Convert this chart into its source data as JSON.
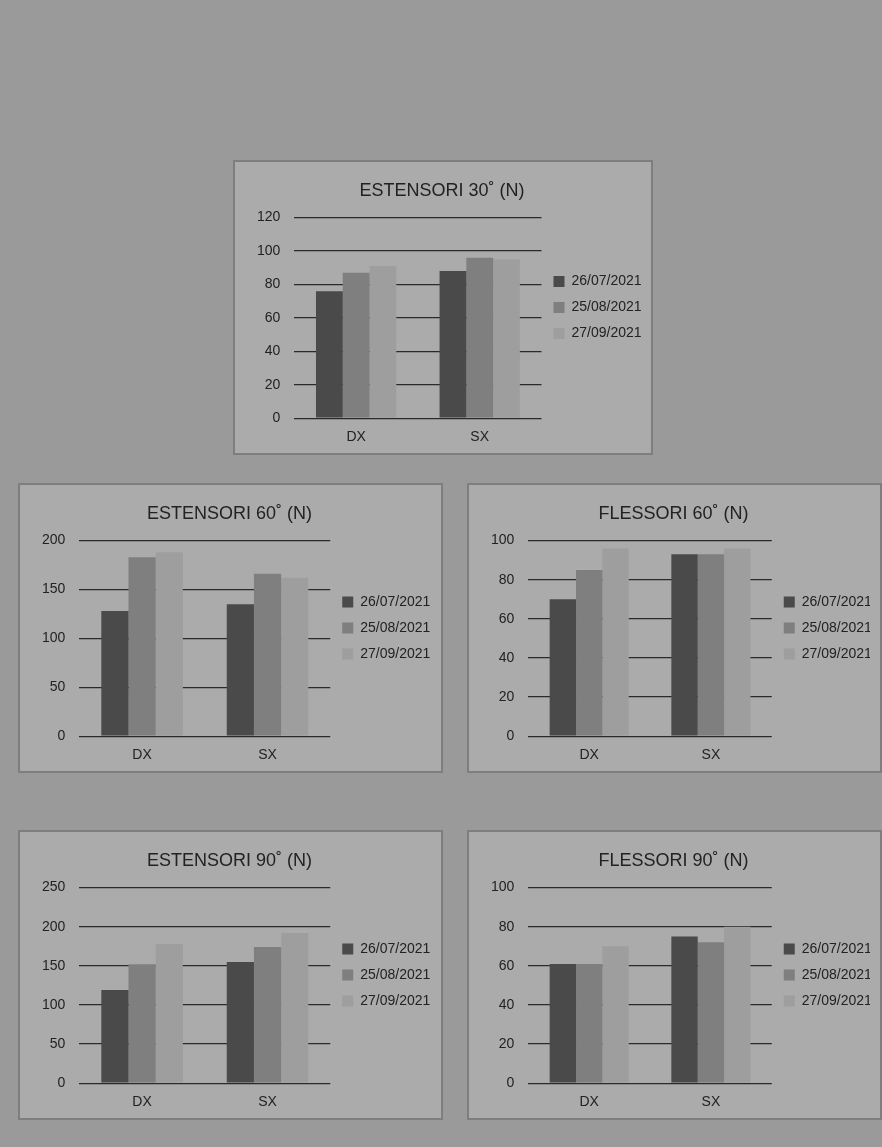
{
  "chart_data": [
    {
      "type": "bar",
      "title": "ESTENSORI 30˚ (N)",
      "categories": [
        "DX",
        "SX"
      ],
      "series": [
        {
          "name": "26/07/2021",
          "color": "#4a4a4a",
          "values": [
            76,
            88
          ]
        },
        {
          "name": "25/08/2021",
          "color": "#7f7f7f",
          "values": [
            87,
            96
          ]
        },
        {
          "name": "27/09/2021",
          "color": "#9e9e9e",
          "values": [
            91,
            95
          ]
        }
      ],
      "ylim": [
        0,
        120
      ],
      "yticks": [
        0,
        20,
        40,
        60,
        80,
        100,
        120
      ],
      "grid": "y",
      "legend": "right"
    },
    {
      "type": "bar",
      "title": "ESTENSORI 60˚ (N)",
      "categories": [
        "DX",
        "SX"
      ],
      "series": [
        {
          "name": "26/07/2021",
          "color": "#4a4a4a",
          "values": [
            128,
            135
          ]
        },
        {
          "name": "25/08/2021",
          "color": "#7f7f7f",
          "values": [
            183,
            166
          ]
        },
        {
          "name": "27/09/2021",
          "color": "#9e9e9e",
          "values": [
            188,
            162
          ]
        }
      ],
      "ylim": [
        0,
        200
      ],
      "yticks": [
        0,
        50,
        100,
        150,
        200
      ],
      "grid": "y",
      "legend": "right"
    },
    {
      "type": "bar",
      "title": "FLESSORI 60˚ (N)",
      "categories": [
        "DX",
        "SX"
      ],
      "series": [
        {
          "name": "26/07/2021",
          "color": "#4a4a4a",
          "values": [
            70,
            93
          ]
        },
        {
          "name": "25/08/2021",
          "color": "#7f7f7f",
          "values": [
            85,
            93
          ]
        },
        {
          "name": "27/09/2021",
          "color": "#9e9e9e",
          "values": [
            96,
            96
          ]
        }
      ],
      "ylim": [
        0,
        100
      ],
      "yticks": [
        0,
        20,
        40,
        60,
        80,
        100
      ],
      "grid": "y",
      "legend": "right"
    },
    {
      "type": "bar",
      "title": "ESTENSORI 90˚ (N)",
      "categories": [
        "DX",
        "SX"
      ],
      "series": [
        {
          "name": "26/07/2021",
          "color": "#4a4a4a",
          "values": [
            119,
            155
          ]
        },
        {
          "name": "25/08/2021",
          "color": "#7f7f7f",
          "values": [
            152,
            174
          ]
        },
        {
          "name": "27/09/2021",
          "color": "#9e9e9e",
          "values": [
            178,
            192
          ]
        }
      ],
      "ylim": [
        0,
        250
      ],
      "yticks": [
        0,
        50,
        100,
        150,
        200,
        250
      ],
      "grid": "y",
      "legend": "right"
    },
    {
      "type": "bar",
      "title": "FLESSORI 90˚ (N)",
      "categories": [
        "DX",
        "SX"
      ],
      "series": [
        {
          "name": "26/07/2021",
          "color": "#4a4a4a",
          "values": [
            61,
            75
          ]
        },
        {
          "name": "25/08/2021",
          "color": "#7f7f7f",
          "values": [
            61,
            72
          ]
        },
        {
          "name": "27/09/2021",
          "color": "#9e9e9e",
          "values": [
            70,
            80
          ]
        }
      ],
      "ylim": [
        0,
        100
      ],
      "yticks": [
        0,
        20,
        40,
        60,
        80,
        100
      ],
      "grid": "y",
      "legend": "right"
    }
  ]
}
